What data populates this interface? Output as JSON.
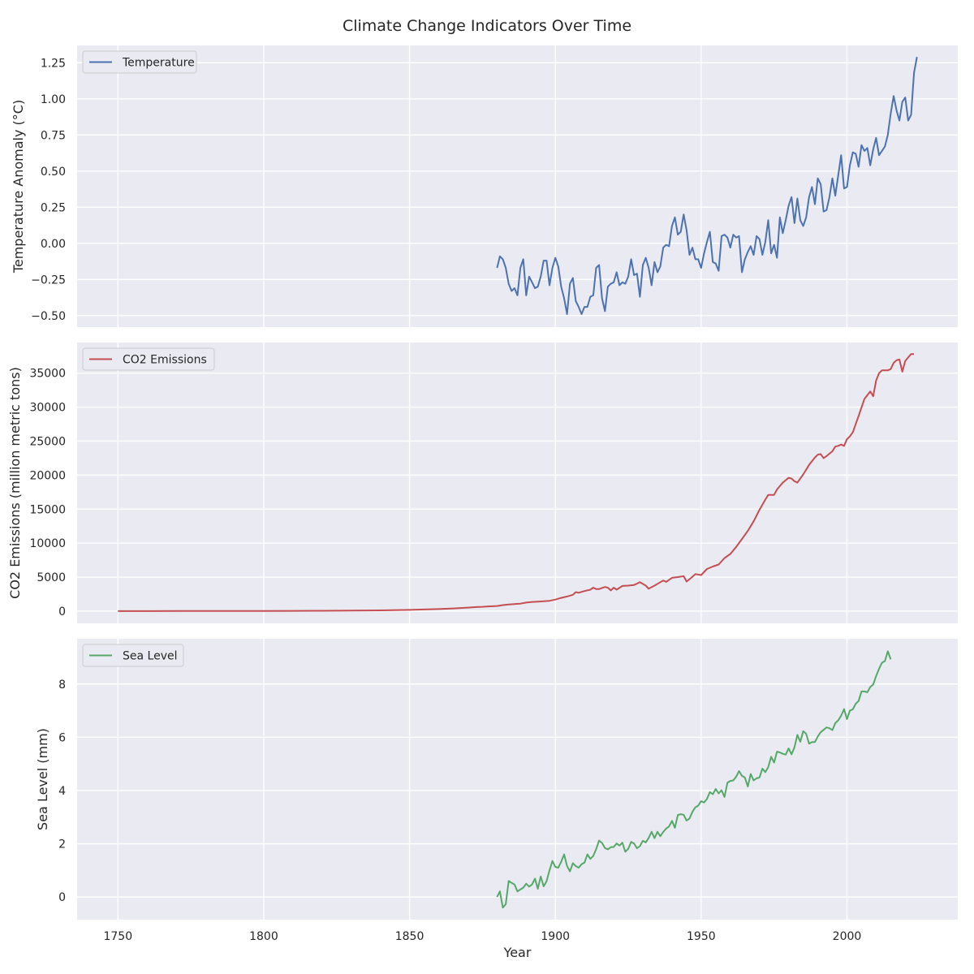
{
  "figure": {
    "title": "Climate Change Indicators Over Time",
    "xlabel": "Year",
    "background": "#ffffff",
    "panel_background": "#eaeaf2",
    "grid_color": "#ffffff"
  },
  "chart_data": [
    {
      "type": "line",
      "ylabel": "Temperature Anomaly (°C)",
      "grid": true,
      "legend_placement": "top-left",
      "xlim": [
        1736,
        2038
      ],
      "ylim": [
        -0.58,
        1.37
      ],
      "xticks": [
        1750,
        1800,
        1850,
        1900,
        1950,
        2000
      ],
      "yticks": [
        -0.5,
        -0.25,
        0.0,
        0.25,
        0.5,
        0.75,
        1.0,
        1.25
      ],
      "ytick_labels": [
        "−0.50",
        "−0.25",
        "0.00",
        "0.25",
        "0.50",
        "0.75",
        "1.00",
        "1.25"
      ],
      "series": [
        {
          "name": "Temperature",
          "color": "#4c72b0",
          "x_start": 1880,
          "x_step": 1,
          "values": [
            -0.17,
            -0.09,
            -0.11,
            -0.17,
            -0.28,
            -0.33,
            -0.31,
            -0.36,
            -0.17,
            -0.11,
            -0.36,
            -0.23,
            -0.27,
            -0.31,
            -0.3,
            -0.23,
            -0.12,
            -0.12,
            -0.29,
            -0.17,
            -0.1,
            -0.16,
            -0.3,
            -0.38,
            -0.49,
            -0.28,
            -0.24,
            -0.4,
            -0.44,
            -0.49,
            -0.44,
            -0.44,
            -0.37,
            -0.36,
            -0.17,
            -0.15,
            -0.38,
            -0.47,
            -0.3,
            -0.28,
            -0.27,
            -0.2,
            -0.29,
            -0.27,
            -0.28,
            -0.23,
            -0.11,
            -0.22,
            -0.21,
            -0.37,
            -0.15,
            -0.1,
            -0.17,
            -0.29,
            -0.13,
            -0.2,
            -0.16,
            -0.03,
            -0.01,
            -0.02,
            0.12,
            0.18,
            0.06,
            0.08,
            0.2,
            0.09,
            -0.08,
            -0.03,
            -0.11,
            -0.11,
            -0.17,
            -0.07,
            0.01,
            0.08,
            -0.13,
            -0.14,
            -0.19,
            0.05,
            0.06,
            0.04,
            -0.03,
            0.06,
            0.04,
            0.05,
            -0.2,
            -0.11,
            -0.06,
            -0.02,
            -0.08,
            0.05,
            0.03,
            -0.08,
            0.01,
            0.16,
            -0.07,
            -0.01,
            -0.1,
            0.18,
            0.07,
            0.16,
            0.26,
            0.32,
            0.14,
            0.31,
            0.16,
            0.12,
            0.18,
            0.32,
            0.39,
            0.27,
            0.45,
            0.41,
            0.22,
            0.23,
            0.32,
            0.45,
            0.33,
            0.47,
            0.61,
            0.38,
            0.39,
            0.54,
            0.63,
            0.62,
            0.53,
            0.68,
            0.64,
            0.66,
            0.54,
            0.65,
            0.73,
            0.61,
            0.64,
            0.67,
            0.75,
            0.9,
            1.02,
            0.92,
            0.85,
            0.98,
            1.01,
            0.85,
            0.89,
            1.18,
            1.29
          ]
        }
      ]
    },
    {
      "type": "line",
      "ylabel": "CO2 Emissions (million metric tons)",
      "grid": true,
      "legend_placement": "top-left",
      "xlim": [
        1736,
        2038
      ],
      "ylim": [
        -1800,
        39500
      ],
      "xticks": [
        1750,
        1800,
        1850,
        1900,
        1950,
        2000
      ],
      "yticks": [
        0,
        5000,
        10000,
        15000,
        20000,
        25000,
        30000,
        35000
      ],
      "ytick_labels": [
        "0",
        "5000",
        "10000",
        "15000",
        "20000",
        "25000",
        "30000",
        "35000"
      ],
      "series": [
        {
          "name": "CO2 Emissions",
          "color": "#c44e52",
          "x": [
            1750,
            1760,
            1770,
            1780,
            1790,
            1800,
            1810,
            1820,
            1830,
            1840,
            1850,
            1855,
            1860,
            1865,
            1870,
            1873,
            1875,
            1877,
            1880,
            1882,
            1884,
            1886,
            1888,
            1890,
            1892,
            1894,
            1896,
            1898,
            1900,
            1902,
            1904,
            1906,
            1907,
            1908,
            1910,
            1912,
            1913,
            1914,
            1915,
            1917,
            1918,
            1919,
            1920,
            1921,
            1923,
            1925,
            1927,
            1928,
            1929,
            1931,
            1932,
            1934,
            1936,
            1937,
            1938,
            1940,
            1942,
            1944,
            1945,
            1947,
            1948,
            1950,
            1952,
            1954,
            1956,
            1958,
            1960,
            1962,
            1964,
            1966,
            1968,
            1970,
            1972,
            1973,
            1975,
            1976,
            1978,
            1980,
            1981,
            1982,
            1983,
            1985,
            1987,
            1989,
            1990,
            1991,
            1992,
            1993,
            1995,
            1996,
            1997,
            1998,
            1999,
            2000,
            2001,
            2002,
            2004,
            2006,
            2008,
            2009,
            2010,
            2011,
            2012,
            2013,
            2014,
            2015,
            2016,
            2017,
            2018,
            2019,
            2020,
            2021,
            2022,
            2023
          ],
          "values": [
            5,
            8,
            12,
            15,
            20,
            30,
            40,
            55,
            75,
            110,
            180,
            240,
            300,
            400,
            520,
            600,
            640,
            700,
            760,
            880,
            980,
            1040,
            1100,
            1250,
            1350,
            1400,
            1450,
            1520,
            1700,
            1950,
            2150,
            2400,
            2800,
            2700,
            2950,
            3150,
            3450,
            3250,
            3250,
            3550,
            3450,
            3050,
            3450,
            3150,
            3700,
            3750,
            3850,
            4050,
            4250,
            3750,
            3300,
            3750,
            4250,
            4500,
            4300,
            4900,
            5000,
            5150,
            4350,
            5050,
            5450,
            5300,
            6200,
            6550,
            6850,
            7800,
            8400,
            9450,
            10600,
            11800,
            13200,
            14900,
            16400,
            17100,
            17100,
            17900,
            18900,
            19600,
            19500,
            19100,
            18900,
            20100,
            21500,
            22600,
            23000,
            23100,
            22500,
            22800,
            23500,
            24200,
            24300,
            24500,
            24300,
            25300,
            25700,
            26300,
            28700,
            31200,
            32300,
            31600,
            33900,
            35000,
            35400,
            35400,
            35400,
            35600,
            36500,
            36900,
            37000,
            35200,
            36800,
            37300,
            37800,
            37800
          ]
        }
      ]
    },
    {
      "type": "line",
      "ylabel": "Sea Level (mm)",
      "grid": true,
      "legend_placement": "top-left",
      "xlim": [
        1736,
        2038
      ],
      "ylim": [
        -0.85,
        9.7
      ],
      "xticks": [
        1750,
        1800,
        1850,
        1900,
        1950,
        2000
      ],
      "yticks": [
        0,
        2,
        4,
        6,
        8
      ],
      "ytick_labels": [
        "0",
        "2",
        "4",
        "6",
        "8"
      ],
      "series": [
        {
          "name": "Sea Level",
          "color": "#55a868",
          "x_start": 1880,
          "x_step": 1,
          "values": [
            0.0,
            0.21,
            -0.4,
            -0.27,
            0.6,
            0.53,
            0.47,
            0.21,
            0.28,
            0.35,
            0.5,
            0.39,
            0.47,
            0.69,
            0.31,
            0.77,
            0.4,
            0.59,
            1.0,
            1.35,
            1.13,
            1.1,
            1.32,
            1.6,
            1.17,
            0.96,
            1.27,
            1.16,
            1.1,
            1.23,
            1.29,
            1.6,
            1.43,
            1.54,
            1.8,
            2.12,
            2.03,
            1.84,
            1.79,
            1.87,
            1.88,
            2.01,
            1.93,
            2.04,
            1.7,
            1.81,
            2.07,
            2.01,
            1.83,
            1.91,
            2.11,
            2.05,
            2.22,
            2.45,
            2.21,
            2.45,
            2.28,
            2.44,
            2.57,
            2.65,
            2.86,
            2.6,
            3.08,
            3.11,
            3.09,
            2.87,
            2.95,
            3.2,
            3.37,
            3.43,
            3.6,
            3.55,
            3.68,
            3.94,
            3.86,
            4.06,
            3.89,
            4.01,
            3.76,
            4.29,
            4.36,
            4.38,
            4.52,
            4.73,
            4.55,
            4.49,
            4.15,
            4.62,
            4.38,
            4.46,
            4.49,
            4.82,
            4.69,
            4.88,
            5.27,
            5.05,
            5.46,
            5.43,
            5.38,
            5.35,
            5.58,
            5.36,
            5.62,
            6.09,
            5.83,
            6.23,
            6.13,
            5.76,
            5.82,
            5.82,
            6.03,
            6.19,
            6.28,
            6.37,
            6.34,
            6.27,
            6.53,
            6.64,
            6.81,
            7.06,
            6.68,
            7.0,
            7.05,
            7.26,
            7.36,
            7.72,
            7.72,
            7.69,
            7.89,
            7.98,
            8.3,
            8.57,
            8.8,
            8.86,
            9.23,
            8.93
          ]
        }
      ]
    }
  ]
}
